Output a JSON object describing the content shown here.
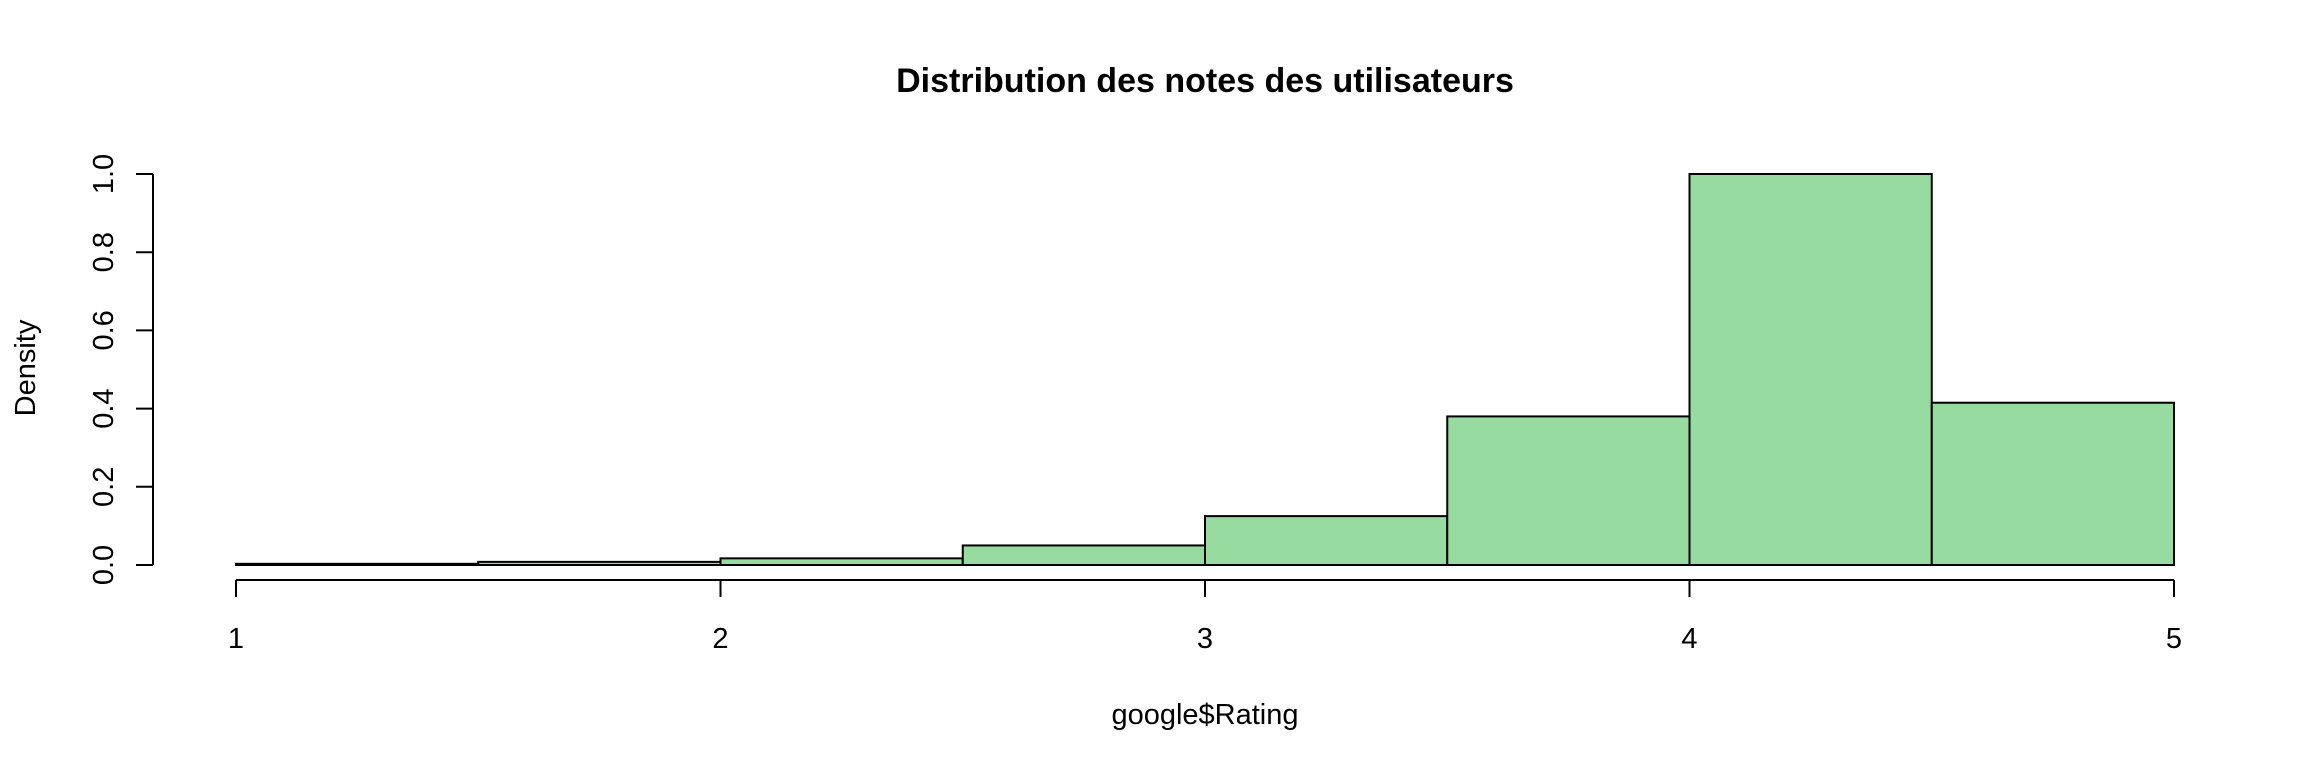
{
  "chart_data": {
    "type": "bar",
    "subtype": "histogram",
    "title": "Distribution des notes des utilisateurs",
    "xlabel": "google$Rating",
    "ylabel": "Density",
    "xlim": [
      1,
      5
    ],
    "ylim": [
      0,
      1.0
    ],
    "x_ticks": [
      "1",
      "2",
      "3",
      "4",
      "5"
    ],
    "y_ticks": [
      "0.0",
      "0.2",
      "0.4",
      "0.6",
      "0.8",
      "1.0"
    ],
    "bins": [
      {
        "from": 1.0,
        "to": 1.5,
        "density": 0.003
      },
      {
        "from": 1.5,
        "to": 2.0,
        "density": 0.008
      },
      {
        "from": 2.0,
        "to": 2.5,
        "density": 0.017
      },
      {
        "from": 2.5,
        "to": 3.0,
        "density": 0.05
      },
      {
        "from": 3.0,
        "to": 3.5,
        "density": 0.125
      },
      {
        "from": 3.5,
        "to": 4.0,
        "density": 0.38
      },
      {
        "from": 4.0,
        "to": 4.5,
        "density": 1.0
      },
      {
        "from": 4.5,
        "to": 5.0,
        "density": 0.415
      }
    ],
    "bar_color": "#98DBA0",
    "border_color": "#000000",
    "grid": false,
    "legend": "none"
  }
}
